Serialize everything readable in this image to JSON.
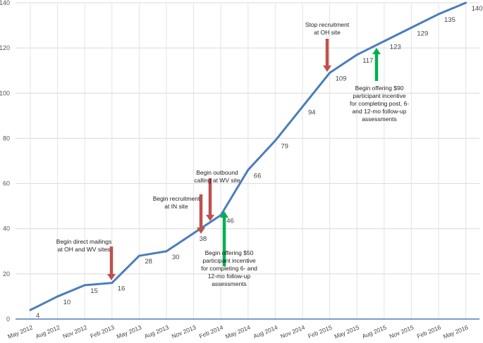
{
  "chart_data": {
    "type": "line",
    "title": "",
    "xlabel": "",
    "ylabel": "",
    "ylim": [
      0,
      140
    ],
    "yticks": [
      0,
      20,
      40,
      60,
      80,
      100,
      120,
      140
    ],
    "grid": true,
    "categories": [
      "May 2012",
      "Aug 2012",
      "Nov 2012",
      "Feb 2013",
      "May 2013",
      "Aug 2013",
      "Nov 2013",
      "Feb 2014",
      "May 2014",
      "Aug 2014",
      "Nov 2014",
      "Feb 2015",
      "May 2015",
      "Aug 2015",
      "Nov 2015",
      "Feb 2016",
      "May 2016"
    ],
    "values": [
      4,
      10,
      15,
      16,
      28,
      30,
      38,
      46,
      66,
      79,
      94,
      109,
      117,
      123,
      129,
      135,
      140
    ],
    "line_color": "#4a7ebb",
    "annotations": [
      {
        "lines": [
          "Begin direct mailings",
          "at OH and WV sites"
        ],
        "arrow": "down",
        "color": "#c0504d",
        "at": "Feb 2013"
      },
      {
        "lines": [
          "Begin recruitment",
          "at IN site"
        ],
        "arrow": "down",
        "color": "#c0504d",
        "at": "Nov 2013"
      },
      {
        "lines": [
          "Begin outbound",
          "calling at WV site"
        ],
        "arrow": "down",
        "color": "#c0504d",
        "at": "Nov 2013"
      },
      {
        "lines": [
          "Begin offering $50",
          "participant incentive",
          "for completing 6- and",
          "12-mo follow-up",
          "assessments"
        ],
        "arrow": "up",
        "color": "#00b050",
        "at": "Feb 2014"
      },
      {
        "lines": [
          "Stop recruitment",
          "at OH site"
        ],
        "arrow": "down",
        "color": "#c0504d",
        "at": "Feb 2015"
      },
      {
        "lines": [
          "Begin offering $90",
          "participant incentive",
          "for completing post, 6-",
          "and 12-mo follow-up",
          "assessments"
        ],
        "arrow": "up",
        "color": "#00b050",
        "at": "May 2015"
      }
    ]
  }
}
